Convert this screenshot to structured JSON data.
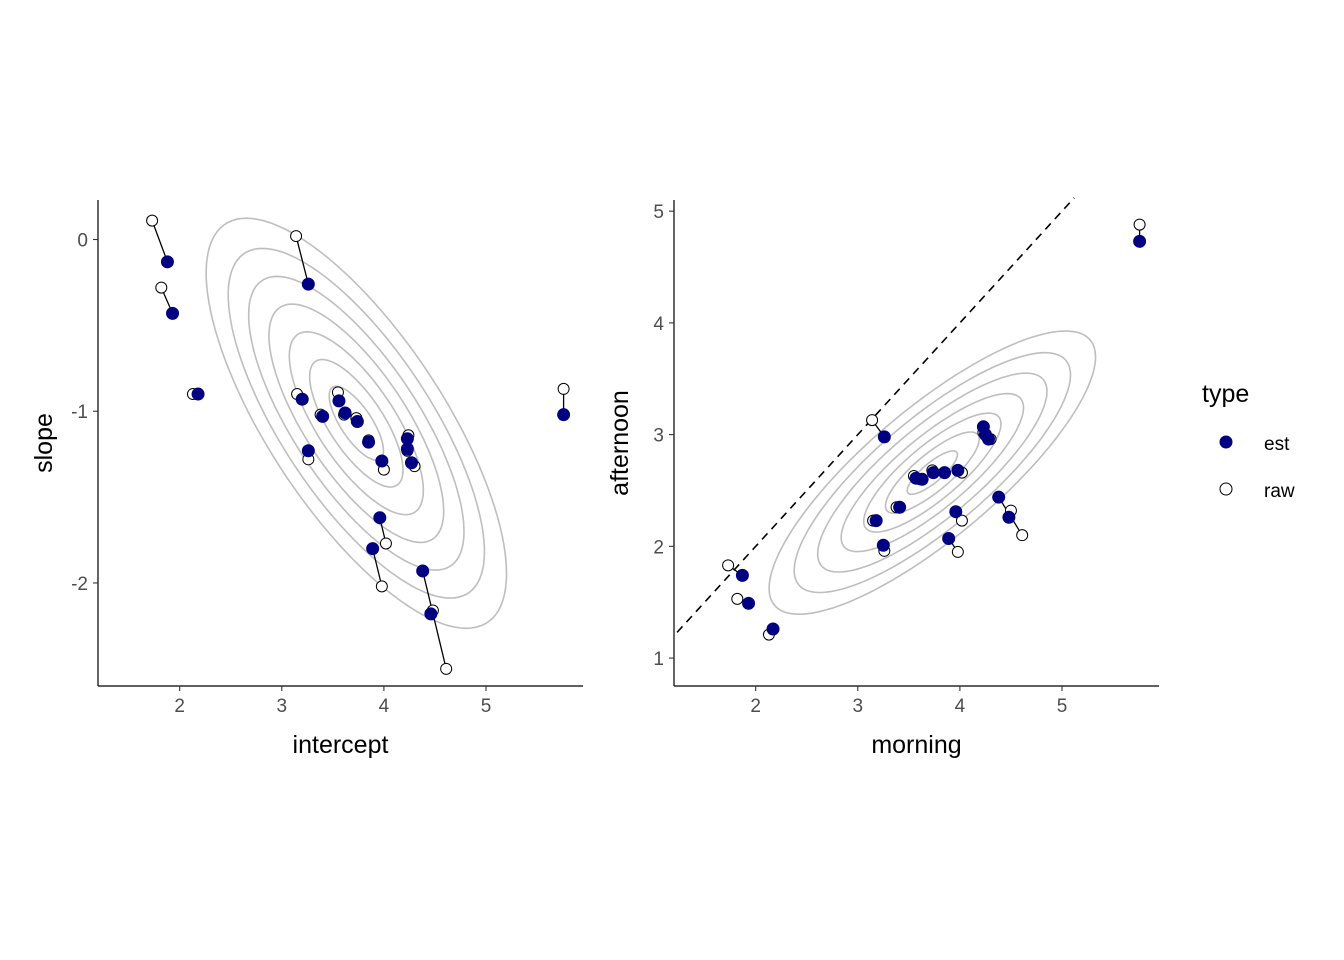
{
  "colors": {
    "est": "#000080",
    "raw_fill": "#ffffff",
    "raw_stroke": "#000000",
    "contour": "#bebebe"
  },
  "legend": {
    "title": "type",
    "entries": [
      {
        "label": "est",
        "shape": "filled-circle"
      },
      {
        "label": "raw",
        "shape": "open-circle"
      }
    ],
    "placement": "right"
  },
  "chart_data": [
    {
      "type": "scatter",
      "title": "",
      "xlabel": "intercept",
      "ylabel": "slope",
      "xlim": [
        1.2,
        5.95
      ],
      "ylim": [
        -2.6,
        0.23
      ],
      "xticks": [
        "2",
        "3",
        "4",
        "5"
      ],
      "yticks": [
        "-2",
        "-1",
        "0"
      ],
      "grid": false,
      "contours": {
        "center": [
          3.73,
          -1.07
        ],
        "radii": [
          [
            0.32,
            0.12
          ],
          [
            0.55,
            0.21
          ],
          [
            0.79,
            0.3
          ],
          [
            1.03,
            0.39
          ],
          [
            1.27,
            0.48
          ],
          [
            1.51,
            0.575
          ],
          [
            1.77,
            0.675
          ]
        ],
        "angle_deg": -37
      },
      "points": [
        {
          "raw": [
            1.73,
            0.11
          ],
          "est": [
            1.88,
            -0.13
          ]
        },
        {
          "raw": [
            1.82,
            -0.28
          ],
          "est": [
            1.93,
            -0.43
          ]
        },
        {
          "raw": [
            2.13,
            -0.9
          ],
          "est": [
            2.18,
            -0.9
          ]
        },
        {
          "raw": [
            3.14,
            0.02
          ],
          "est": [
            3.26,
            -0.26
          ]
        },
        {
          "raw": [
            3.15,
            -0.9
          ],
          "est": [
            3.2,
            -0.93
          ]
        },
        {
          "raw": [
            3.26,
            -1.28
          ],
          "est": [
            3.26,
            -1.23
          ]
        },
        {
          "raw": [
            3.38,
            -1.02
          ],
          "est": [
            3.4,
            -1.03
          ]
        },
        {
          "raw": [
            3.55,
            -0.89
          ],
          "est": [
            3.56,
            -0.94
          ]
        },
        {
          "raw": [
            3.61,
            -1.02
          ],
          "est": [
            3.62,
            -1.01
          ]
        },
        {
          "raw": [
            3.73,
            -1.04
          ],
          "est": [
            3.74,
            -1.06
          ]
        },
        {
          "raw": [
            3.85,
            -1.17
          ],
          "est": [
            3.85,
            -1.18
          ]
        },
        {
          "raw": [
            4.0,
            -1.34
          ],
          "est": [
            3.98,
            -1.29
          ]
        },
        {
          "raw": [
            4.24,
            -1.14
          ],
          "est": [
            4.23,
            -1.16
          ]
        },
        {
          "raw": [
            4.23,
            -1.23
          ],
          "est": [
            4.23,
            -1.22
          ]
        },
        {
          "raw": [
            4.3,
            -1.32
          ],
          "est": [
            4.27,
            -1.3
          ]
        },
        {
          "raw": [
            4.02,
            -1.77
          ],
          "est": [
            3.96,
            -1.62
          ]
        },
        {
          "raw": [
            3.98,
            -2.02
          ],
          "est": [
            3.89,
            -1.8
          ]
        },
        {
          "raw": [
            4.48,
            -2.16
          ],
          "est": [
            4.46,
            -2.18
          ]
        },
        {
          "raw": [
            4.61,
            -2.5
          ],
          "est": [
            4.38,
            -1.93
          ]
        },
        {
          "raw": [
            5.76,
            -0.87
          ],
          "est": [
            5.76,
            -1.02
          ]
        }
      ]
    },
    {
      "type": "scatter",
      "title": "",
      "xlabel": "morning",
      "ylabel": "afternoon",
      "xlim": [
        1.2,
        5.95
      ],
      "ylim": [
        0.75,
        5.1
      ],
      "xticks": [
        "2",
        "3",
        "4",
        "5"
      ],
      "yticks": [
        "1",
        "2",
        "3",
        "4",
        "5"
      ],
      "grid": false,
      "reference_line": {
        "style": "dashed",
        "slope": 1,
        "intercept": 0
      },
      "contours": {
        "center": [
          3.73,
          2.66
        ],
        "radii": [
          [
            0.3,
            0.09
          ],
          [
            0.56,
            0.17
          ],
          [
            0.82,
            0.25
          ],
          [
            1.09,
            0.33
          ],
          [
            1.37,
            0.42
          ],
          [
            1.65,
            0.51
          ],
          [
            1.95,
            0.6
          ]
        ],
        "angle_deg": 37
      },
      "points": [
        {
          "raw": [
            1.73,
            1.83
          ],
          "est": [
            1.87,
            1.74
          ]
        },
        {
          "raw": [
            1.82,
            1.53
          ],
          "est": [
            1.93,
            1.49
          ]
        },
        {
          "raw": [
            2.13,
            1.21
          ],
          "est": [
            2.17,
            1.26
          ]
        },
        {
          "raw": [
            3.14,
            3.13
          ],
          "est": [
            3.26,
            2.98
          ]
        },
        {
          "raw": [
            3.15,
            2.23
          ],
          "est": [
            3.18,
            2.23
          ]
        },
        {
          "raw": [
            3.26,
            1.96
          ],
          "est": [
            3.25,
            2.01
          ]
        },
        {
          "raw": [
            3.38,
            2.35
          ],
          "est": [
            3.41,
            2.35
          ]
        },
        {
          "raw": [
            3.55,
            2.63
          ],
          "est": [
            3.57,
            2.61
          ]
        },
        {
          "raw": [
            3.61,
            2.6
          ],
          "est": [
            3.63,
            2.6
          ]
        },
        {
          "raw": [
            3.73,
            2.68
          ],
          "est": [
            3.74,
            2.66
          ]
        },
        {
          "raw": [
            3.85,
            2.66
          ],
          "est": [
            3.85,
            2.66
          ]
        },
        {
          "raw": [
            4.02,
            2.66
          ],
          "est": [
            3.98,
            2.68
          ]
        },
        {
          "raw": [
            4.23,
            3.02
          ],
          "est": [
            4.23,
            3.07
          ]
        },
        {
          "raw": [
            4.25,
            3.0
          ],
          "est": [
            4.25,
            3.0
          ]
        },
        {
          "raw": [
            4.3,
            2.96
          ],
          "est": [
            4.28,
            2.96
          ]
        },
        {
          "raw": [
            4.02,
            2.23
          ],
          "est": [
            3.96,
            2.31
          ]
        },
        {
          "raw": [
            3.98,
            1.95
          ],
          "est": [
            3.89,
            2.07
          ]
        },
        {
          "raw": [
            4.5,
            2.32
          ],
          "est": [
            4.48,
            2.26
          ]
        },
        {
          "raw": [
            4.61,
            2.1
          ],
          "est": [
            4.38,
            2.44
          ]
        },
        {
          "raw": [
            5.76,
            4.88
          ],
          "est": [
            5.76,
            4.73
          ]
        }
      ]
    }
  ]
}
